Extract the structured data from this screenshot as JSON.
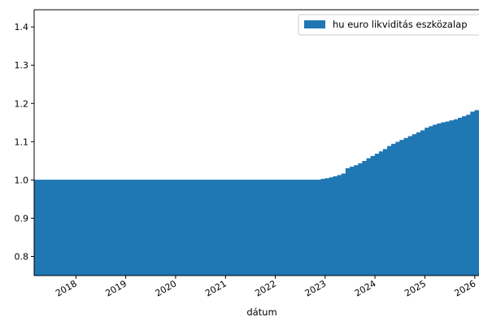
{
  "chart_data": {
    "type": "area",
    "title": "",
    "xlabel": "dátum",
    "ylabel": "",
    "ylim": [
      0.75,
      1.445
    ],
    "xlim": [
      "2017-03-01",
      "2026-02-01"
    ],
    "y_ticks": [
      "0.8",
      "0.9",
      "1.0",
      "1.1",
      "1.2",
      "1.3",
      "1.4"
    ],
    "x_ticks": [
      "2018",
      "2019",
      "2020",
      "2021",
      "2022",
      "2023",
      "2024",
      "2025",
      "2026"
    ],
    "grid": false,
    "legend_position": "top-right",
    "series": [
      {
        "name": "hu euro likviditás eszközalap",
        "color": "#1f77b4",
        "x": [
          "2017-03-01",
          "2022-11-01",
          "2022-12-01",
          "2023-01-01",
          "2023-02-01",
          "2023-03-01",
          "2023-04-01",
          "2023-05-01",
          "2023-06-01",
          "2023-07-01",
          "2023-08-01",
          "2023-09-01",
          "2023-10-01",
          "2023-11-01",
          "2023-12-01",
          "2024-01-01",
          "2024-02-01",
          "2024-03-01",
          "2024-04-01",
          "2024-05-01",
          "2024-06-01",
          "2024-07-01",
          "2024-08-01",
          "2024-09-01",
          "2024-10-01",
          "2024-11-01",
          "2024-12-01",
          "2025-01-01",
          "2025-02-01",
          "2025-03-01",
          "2025-04-01",
          "2025-05-01",
          "2025-06-01",
          "2025-07-01",
          "2025-08-01",
          "2025-09-01",
          "2025-10-01",
          "2025-11-01",
          "2025-12-01",
          "2026-01-01"
        ],
        "values": [
          1.0,
          1.0,
          1.002,
          1.004,
          1.006,
          1.009,
          1.012,
          1.016,
          1.03,
          1.034,
          1.038,
          1.043,
          1.049,
          1.056,
          1.062,
          1.068,
          1.074,
          1.08,
          1.088,
          1.094,
          1.099,
          1.104,
          1.109,
          1.114,
          1.119,
          1.124,
          1.129,
          1.136,
          1.14,
          1.144,
          1.147,
          1.15,
          1.152,
          1.155,
          1.158,
          1.162,
          1.166,
          1.17,
          1.178,
          1.182
        ]
      }
    ]
  }
}
